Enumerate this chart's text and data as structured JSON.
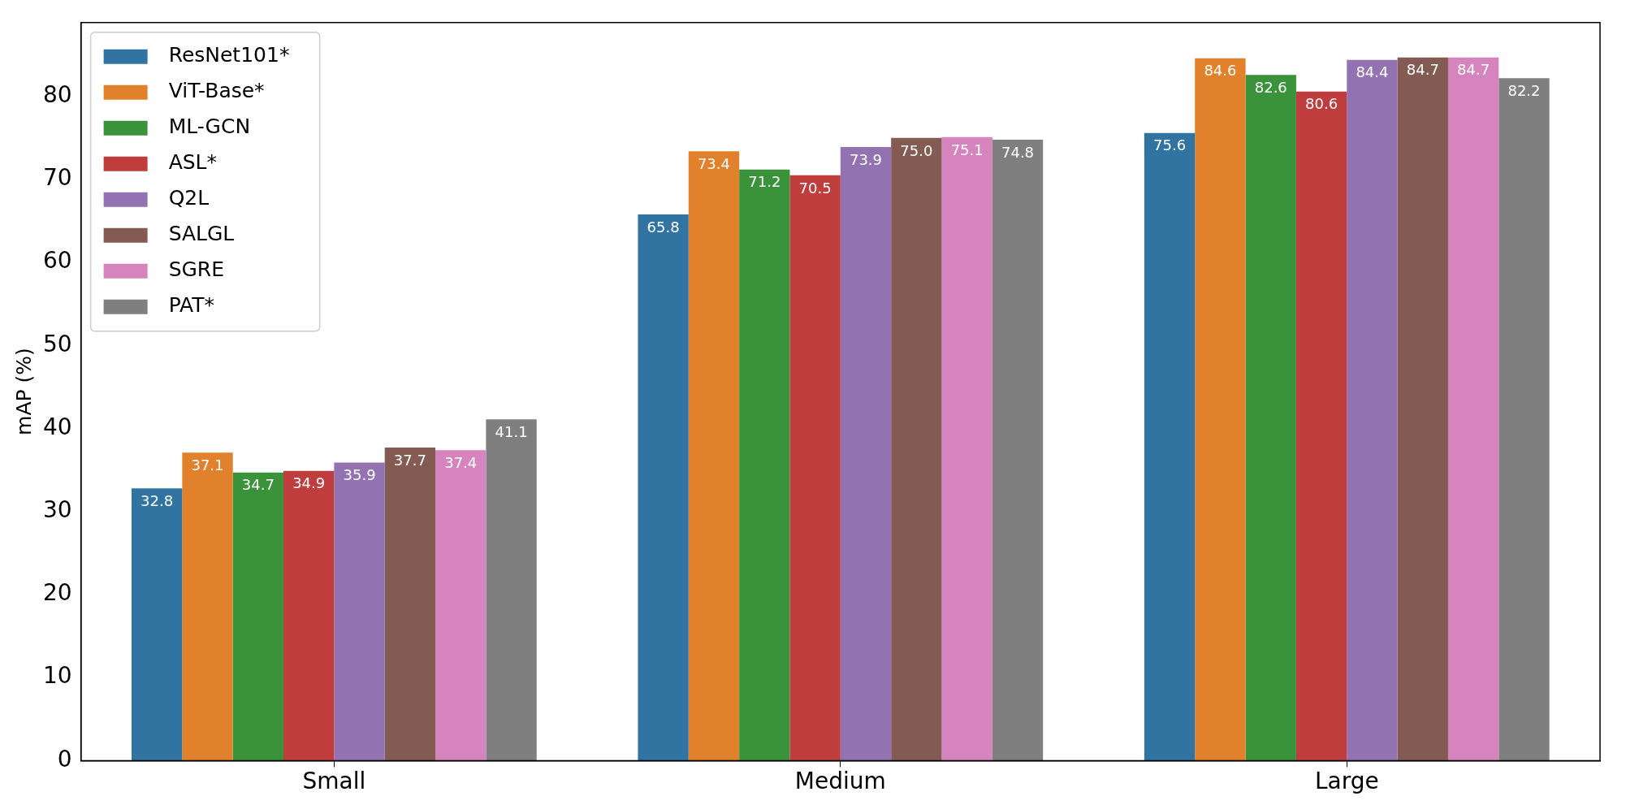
{
  "chart_data": {
    "type": "bar",
    "ylabel": "mAP (%)",
    "categories": [
      "Small",
      "Medium",
      "Large"
    ],
    "series": [
      {
        "name": "ResNet101*",
        "color": "#3274a1",
        "values": [
          32.8,
          65.8,
          75.6
        ],
        "value_labels": [
          "32.8",
          "65.8",
          "75.6"
        ]
      },
      {
        "name": "ViT-Base*",
        "color": "#e1812c",
        "values": [
          37.1,
          73.4,
          84.6
        ],
        "value_labels": [
          "37.1",
          "73.4",
          "84.6"
        ]
      },
      {
        "name": "ML-GCN",
        "color": "#3a923a",
        "values": [
          34.7,
          71.2,
          82.6
        ],
        "value_labels": [
          "34.7",
          "71.2",
          "82.6"
        ]
      },
      {
        "name": "ASL*",
        "color": "#c03d3e",
        "values": [
          34.9,
          70.5,
          80.6
        ],
        "value_labels": [
          "34.9",
          "70.5",
          "80.6"
        ]
      },
      {
        "name": "Q2L",
        "color": "#9372b2",
        "values": [
          35.9,
          73.9,
          84.4
        ],
        "value_labels": [
          "35.9",
          "73.9",
          "84.4"
        ]
      },
      {
        "name": "SALGL",
        "color": "#845b53",
        "values": [
          37.7,
          75.0,
          84.7
        ],
        "value_labels": [
          "37.7",
          "75.0",
          "84.7"
        ]
      },
      {
        "name": "SGRE",
        "color": "#d684bd",
        "values": [
          37.4,
          75.1,
          84.7
        ],
        "value_labels": [
          "37.4",
          "75.1",
          "84.7"
        ]
      },
      {
        "name": "PAT*",
        "color": "#7f7f7f",
        "values": [
          41.1,
          74.8,
          82.2
        ],
        "value_labels": [
          "41.1",
          "74.8",
          "82.2"
        ]
      }
    ],
    "ylim": [
      0,
      88.9
    ],
    "yticks": [
      0,
      10,
      20,
      30,
      40,
      50,
      60,
      70,
      80
    ],
    "legend": "top left",
    "grid": false
  }
}
